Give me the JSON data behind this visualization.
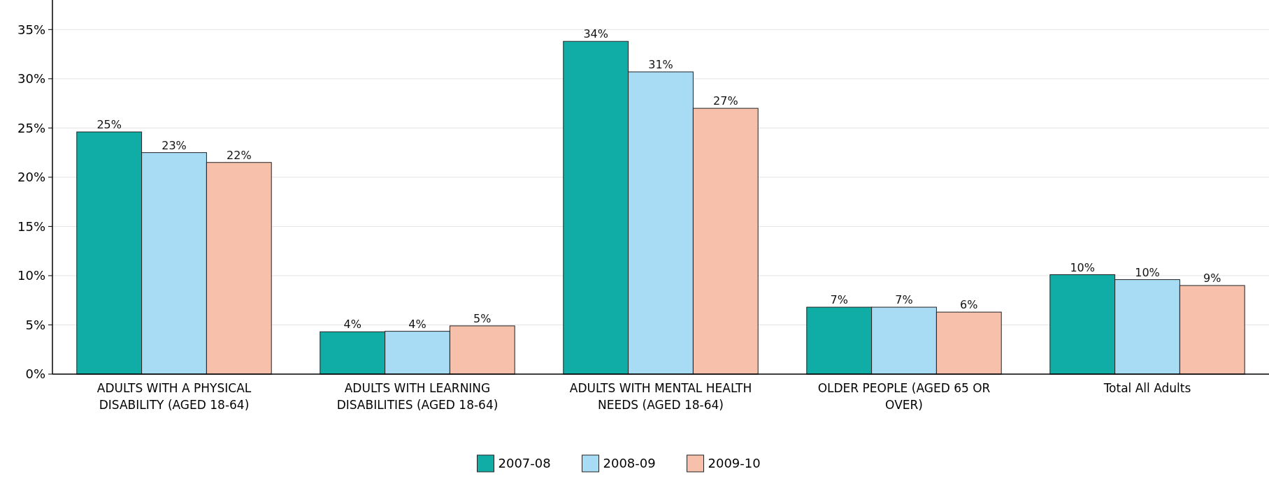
{
  "chart_data": {
    "type": "bar",
    "categories": [
      "ADULTS WITH A PHYSICAL DISABILITY (AGED 18-64)",
      "ADULTS WITH LEARNING DISABILITIES (AGED 18-64)",
      "ADULTS WITH MENTAL HEALTH NEEDS (AGED 18-64)",
      "OLDER PEOPLE (AGED 65 OR OVER)",
      "Total All Adults"
    ],
    "series": [
      {
        "name": "2007-08",
        "color": "#10ada6",
        "values": [
          24.6,
          4.3,
          33.8,
          6.8,
          10.1
        ],
        "value_labels": [
          "25%",
          "4%",
          "34%",
          "7%",
          "10%"
        ]
      },
      {
        "name": "2008-09",
        "color": "#a8dcf5",
        "values": [
          22.5,
          4.35,
          30.7,
          6.8,
          9.6
        ],
        "value_labels": [
          "23%",
          "4%",
          "31%",
          "7%",
          "10%"
        ]
      },
      {
        "name": "2009-10",
        "color": "#f6c0aa",
        "values": [
          21.5,
          4.9,
          27.0,
          6.3,
          9.0
        ],
        "value_labels": [
          "22%",
          "5%",
          "27%",
          "6%",
          "9%"
        ]
      }
    ],
    "ylim": [
      0,
      38
    ],
    "yticks": [
      {
        "value": 0,
        "label": "0%"
      },
      {
        "value": 5,
        "label": "5%"
      },
      {
        "value": 10,
        "label": "10%"
      },
      {
        "value": 15,
        "label": "15%"
      },
      {
        "value": 20,
        "label": "20%"
      },
      {
        "value": 25,
        "label": "25%"
      },
      {
        "value": 30,
        "label": "30%"
      },
      {
        "value": 35,
        "label": "35%"
      }
    ],
    "grid": "y",
    "legend": "bottom"
  }
}
